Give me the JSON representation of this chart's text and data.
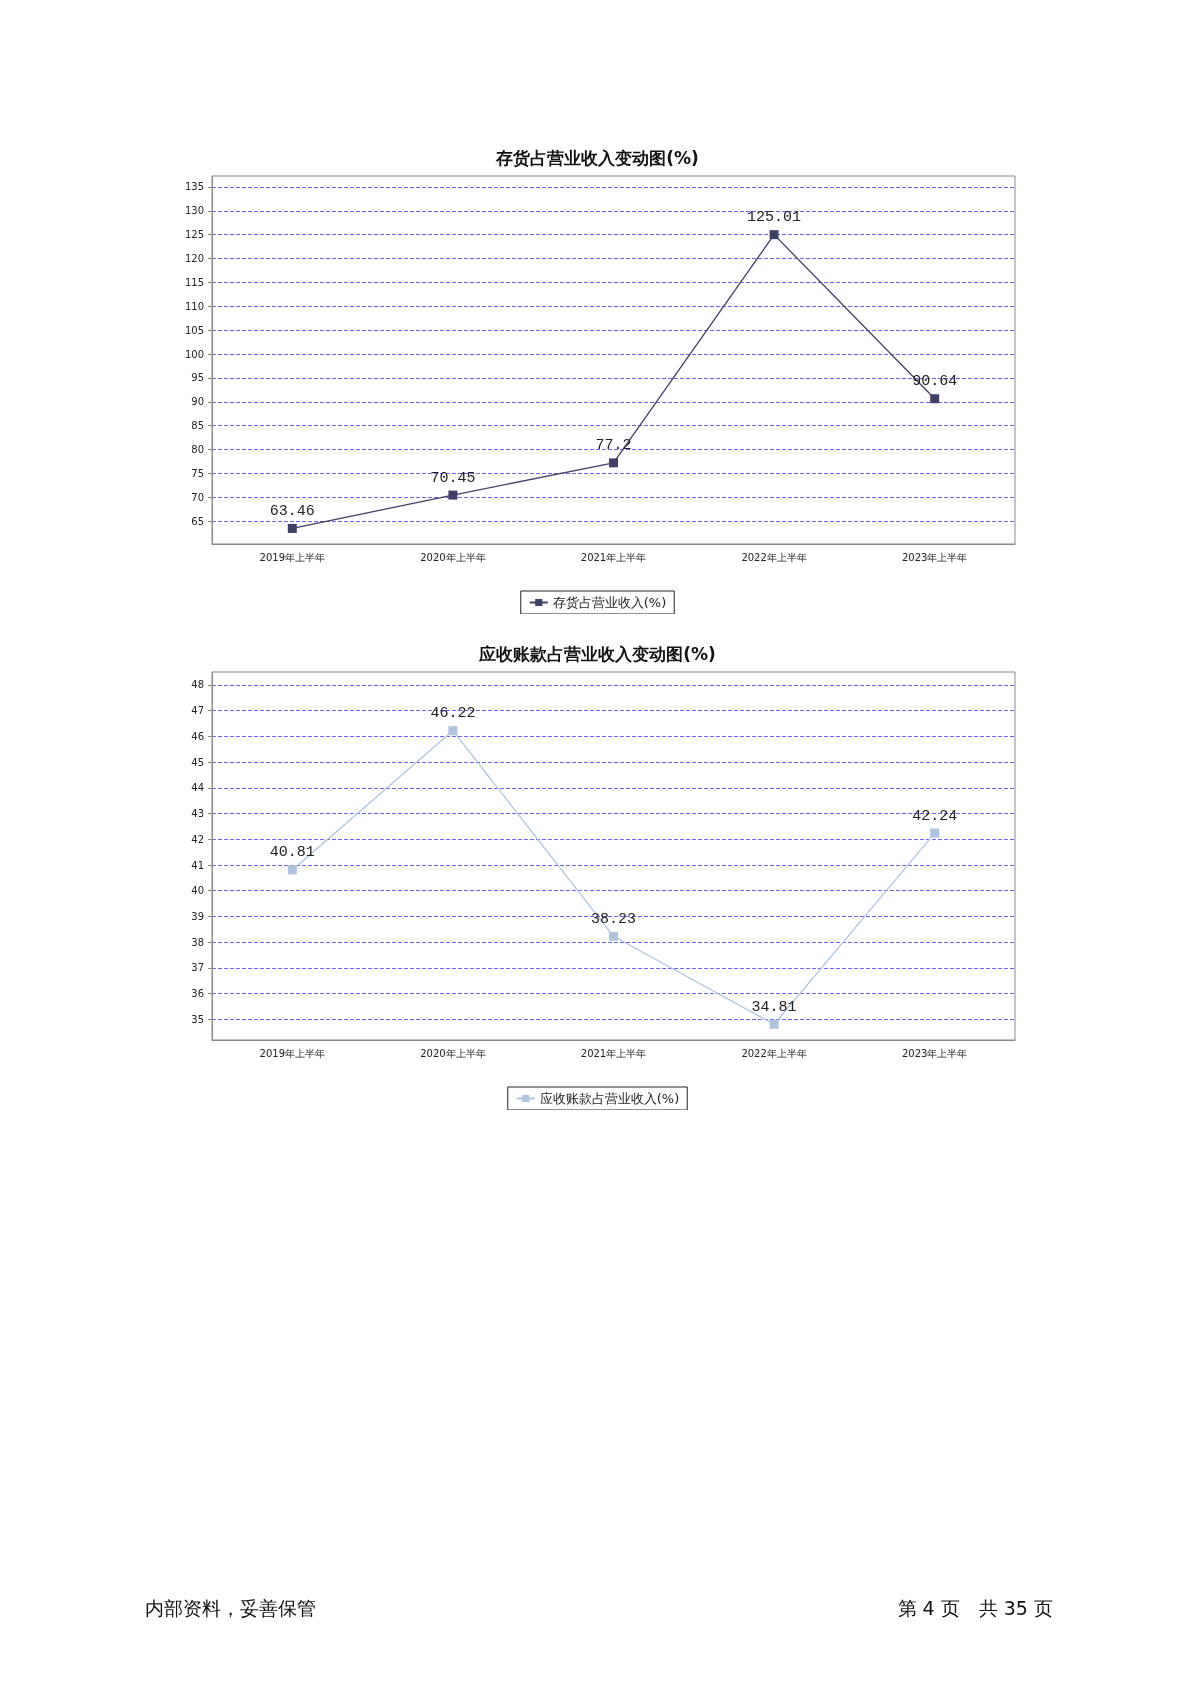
{
  "chart_data": [
    {
      "type": "line",
      "title": "存货占营业收入变动图(%)",
      "categories": [
        "2019年上半年",
        "2020年上半年",
        "2021年上半年",
        "2022年上半年",
        "2023年上半年"
      ],
      "series": [
        {
          "name": "存货占营业收入(%)",
          "color": "#404066",
          "values": [
            63.46,
            70.45,
            77.2,
            125.01,
            90.64
          ]
        }
      ],
      "ylim": [
        60.2,
        137.3
      ],
      "yticks": [
        65,
        70,
        75,
        80,
        85,
        90,
        95,
        100,
        105,
        110,
        115,
        120,
        125,
        130,
        135
      ],
      "grid": "y",
      "legend": "bottom",
      "marker": "square",
      "line_style": "solid",
      "data_labels": true
    },
    {
      "type": "line",
      "title": "应收账款占营业收入变动图(%)",
      "categories": [
        "2019年上半年",
        "2020年上半年",
        "2021年上半年",
        "2022年上半年",
        "2023年上半年"
      ],
      "series": [
        {
          "name": "应收账款占营业收入(%)",
          "color": "#b0c4de",
          "values": [
            40.81,
            46.22,
            38.23,
            34.81,
            42.24
          ]
        }
      ],
      "ylim": [
        34.2,
        48.5
      ],
      "yticks": [
        35,
        36,
        37,
        38,
        39,
        40,
        41,
        42,
        43,
        44,
        45,
        46,
        47,
        48
      ],
      "grid": "y",
      "legend": "bottom",
      "marker": "square",
      "line_style": "solid",
      "data_labels": true,
      "annotations": [
        "内部资料，妥善保管",
        "第 4 页　共 35 页"
      ]
    }
  ]
}
